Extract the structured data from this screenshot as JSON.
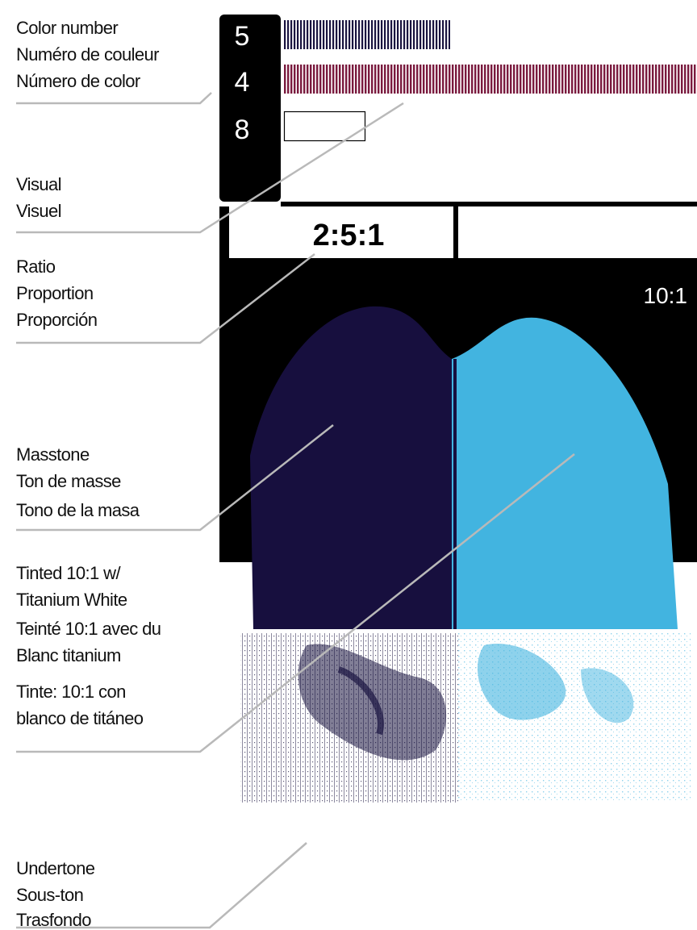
{
  "color_number": [
    "5",
    "4",
    "8"
  ],
  "ratio": "2:5:1",
  "tint_ratio": "10:1",
  "legend": {
    "color_number": [
      "Color number",
      "Numéro de couleur",
      "Número de color"
    ],
    "visual": [
      "Visual",
      "Visuel"
    ],
    "ratio": [
      "Ratio",
      "Proportion",
      "Proporción"
    ],
    "masstone": [
      "Masstone",
      "Ton de masse",
      "Tono de la masa"
    ],
    "tinted": [
      "Tinted 10:1 w/",
      "Titanium White",
      "Teinté 10:1 avec du",
      "Blanc titanium",
      "Tinte: 10:1 con",
      "blanco de titáneo"
    ],
    "undertone": [
      "Undertone",
      "Sous-ton",
      "Trasfondo"
    ]
  }
}
